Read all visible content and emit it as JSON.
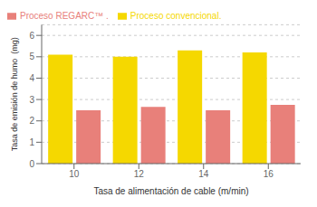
{
  "chart_data": {
    "type": "bar",
    "categories": [
      "10",
      "12",
      "14",
      "16"
    ],
    "series": [
      {
        "name": "Proceso convencional.",
        "color": "#F5D800",
        "values": [
          5.1,
          5.0,
          5.3,
          5.2
        ]
      },
      {
        "name": "Proceso REGARC™ .",
        "color": "#E8807A",
        "values": [
          2.5,
          2.65,
          2.5,
          2.75
        ]
      }
    ],
    "xlabel": "Tasa de alimentación de cable (m/min)",
    "ylabel": "Tasa de emisión de humo  (mg)",
    "ylim": [
      0,
      6.5
    ],
    "yticks": [
      0,
      1,
      2,
      3,
      4,
      5,
      6
    ],
    "grid": true,
    "legend": "upper left"
  }
}
